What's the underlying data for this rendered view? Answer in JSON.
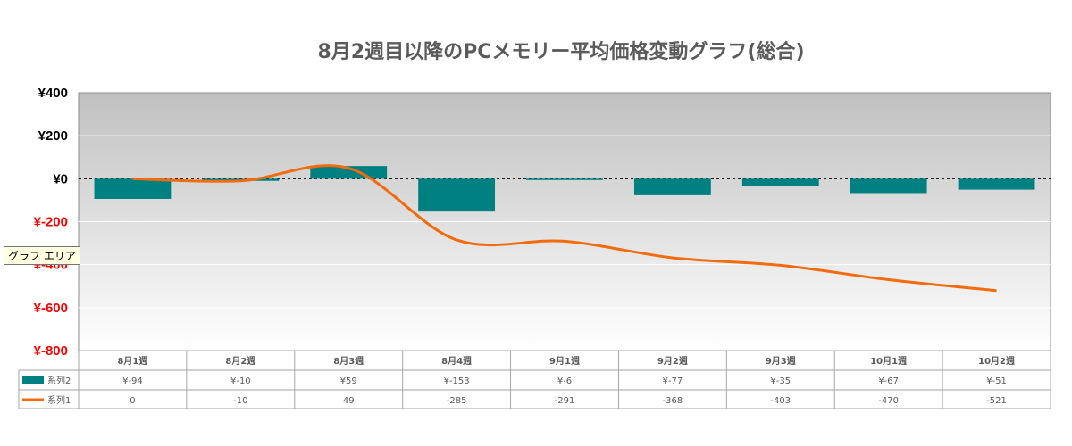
{
  "chart_data": {
    "type": "bar",
    "title": "8月2週目以降のPCメモリー平均価格変動グラフ(総合)",
    "categories": [
      "8月1週",
      "8月2週",
      "8月3週",
      "8月4週",
      "9月1週",
      "9月2週",
      "9月3週",
      "10月1週",
      "10月2週"
    ],
    "series": [
      {
        "name": "系列2",
        "type": "bar",
        "color": "#008080",
        "values": [
          -94,
          -10,
          59,
          -153,
          -6,
          -77,
          -35,
          -67,
          -51
        ],
        "labels": [
          "¥-94",
          "¥-10",
          "¥59",
          "¥-153",
          "¥-6",
          "¥-77",
          "¥-35",
          "¥-67",
          "¥-51"
        ]
      },
      {
        "name": "系列1",
        "type": "line",
        "smooth": true,
        "color": "#f26b0f",
        "values": [
          0,
          -10,
          49,
          -285,
          -291,
          -368,
          -403,
          -470,
          -521
        ],
        "labels": [
          "0",
          "-10",
          "49",
          "-285",
          "-291",
          "-368",
          "-403",
          "-470",
          "-521"
        ]
      }
    ],
    "ylim": [
      -800,
      400
    ],
    "yticks": [
      400,
      200,
      0,
      -200,
      -400,
      -600,
      -800
    ],
    "ytick_labels": [
      "¥400",
      "¥200",
      "¥0",
      "¥-200",
      "¥-400",
      "¥-600",
      "¥-800"
    ],
    "negative_tick_color": "#ff0000",
    "grid": true,
    "zero_line": "dashed",
    "data_table": true
  },
  "tooltip": "グラフ エリア"
}
